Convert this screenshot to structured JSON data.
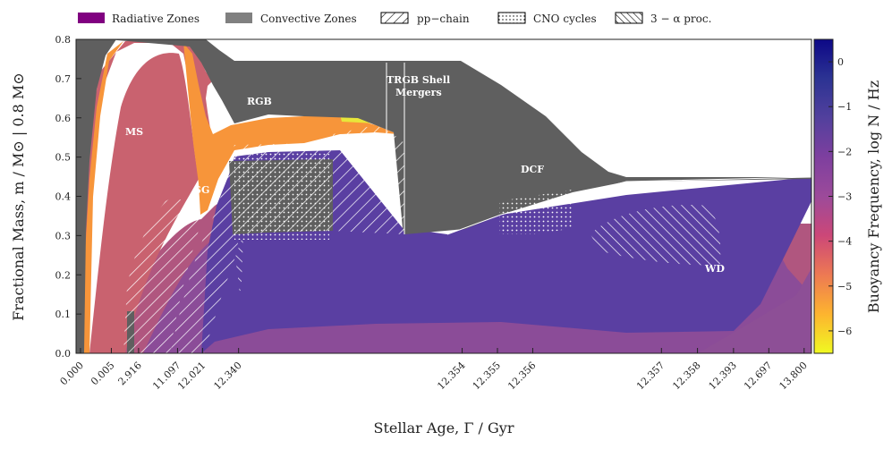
{
  "chart_data": {
    "type": "area",
    "title": "",
    "xlabel": "Stellar Age, Γ / Gyr",
    "ylabel": "Fractional Mass, m / M⊙ | 0.8 M⊙",
    "ylim": [
      0.0,
      0.8
    ],
    "y_ticks": [
      0.0,
      0.1,
      0.2,
      0.3,
      0.4,
      0.5,
      0.6,
      0.7,
      0.8
    ],
    "x_ticks": [
      "0.000",
      "0.005",
      "2.916",
      "11.097",
      "12.021",
      "12.340",
      "12.354",
      "12.355",
      "12.356",
      "12.357",
      "12.358",
      "12.393",
      "12.697",
      "13.800"
    ],
    "x_axis_note": "non-linear (model-number spaced) stellar age axis",
    "legend": [
      {
        "label": "Radiative Zones",
        "style": "solid",
        "color": "#800080"
      },
      {
        "label": "Convective Zones",
        "style": "solid",
        "color": "#808080"
      },
      {
        "label": "pp−chain",
        "style": "back-hatch"
      },
      {
        "label": "CNO cycles",
        "style": "dots"
      },
      {
        "label": "3 − α proc.",
        "style": "hatch"
      }
    ],
    "legend_position": "top",
    "colorbar": {
      "label": "Buoyancy Frequency, log N / Hz",
      "ticks": [
        "0",
        "−1",
        "−2",
        "−3",
        "−4",
        "−5",
        "−6"
      ],
      "range": [
        -6.5,
        0.5
      ],
      "colors": [
        "#f0f921",
        "#fdb42f",
        "#ed7953",
        "#cc4778",
        "#9c4a9a",
        "#7e3f9f",
        "#52409d",
        "#2c3393",
        "#0d0887"
      ]
    },
    "annotations": [
      "MS",
      "SG",
      "RGB",
      "TRGB Shell",
      "Mergers",
      "DCF",
      "WD"
    ],
    "phases": [
      {
        "name": "MS",
        "age_start": 0.005,
        "age_end": 11.097
      },
      {
        "name": "SG",
        "age_start": 11.097,
        "age_end": 12.021
      },
      {
        "name": "RGB",
        "age_start": 12.021,
        "age_end": 12.34
      },
      {
        "name": "TRGB Shell Mergers",
        "age_start": 12.34,
        "age_end": 12.354
      },
      {
        "name": "DCF",
        "age_start": 12.354,
        "age_end": 12.357
      },
      {
        "name": "WD",
        "age_start": 12.357,
        "age_end": 13.8
      }
    ],
    "colors": {
      "convective": "#5f5f5f",
      "ms_band": "#c8616e",
      "orange": "#f7953a",
      "yellow": "#e8e63a",
      "blue_core": "#5a3fa2",
      "violet": "#8a4c9a",
      "pink": "#b85a8a"
    }
  }
}
